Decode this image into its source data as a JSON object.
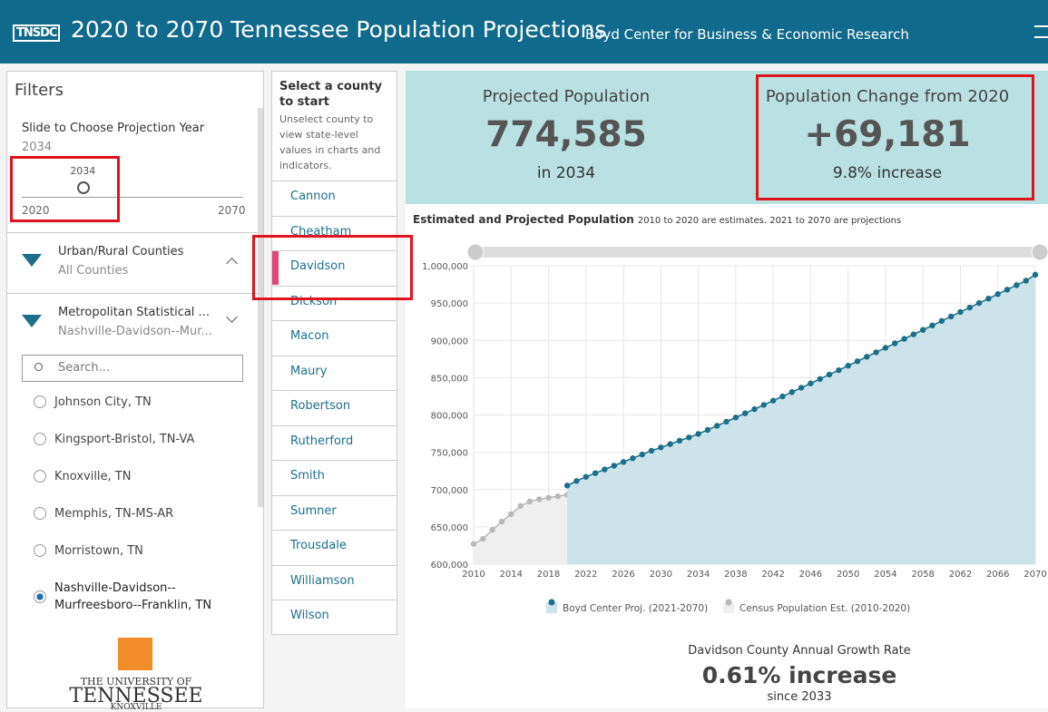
{
  "header": {
    "logo": "TNSDC",
    "title": "2020 to 2070 Tennessee Population Projections",
    "subtitle": "Boyd Center for Business & Economic Research"
  },
  "filters": {
    "title": "Filters",
    "slider": {
      "label": "Slide to Choose Projection Year",
      "value": 2034,
      "min": 2020,
      "max": 2070
    },
    "groups": [
      {
        "title": "Urban/Rural Counties",
        "value": "All Counties"
      },
      {
        "title": "Metropolitan Statistical ...",
        "value": "Nashville-Davidson--Mur..."
      }
    ],
    "search": "Search...",
    "options": [
      {
        "name": "Johnson City, TN"
      },
      {
        "name": "Kingsport-Bristol, TN-VA"
      },
      {
        "name": "Knoxville, TN"
      },
      {
        "name": "Memphis, TN-MS-AR"
      },
      {
        "name": "Morristown, TN"
      },
      {
        "name": "Nashville-Davidson--Murfreesboro--Franklin, TN",
        "selected": true
      }
    ],
    "logo": {
      "line1": "THE UNIVERSITY OF",
      "line2": "TENNESSEE",
      "line3": "KNOXVILLE"
    }
  },
  "counties": {
    "title": "Select a county to start",
    "note": "Unselect county to view state-level values in charts and indicators.",
    "items": [
      {
        "name": "Cannon"
      },
      {
        "name": "Cheatham"
      },
      {
        "name": "Davidson",
        "selected": true
      },
      {
        "name": "Dickson"
      },
      {
        "name": "Macon"
      },
      {
        "name": "Maury"
      },
      {
        "name": "Robertson"
      },
      {
        "name": "Rutherford"
      },
      {
        "name": "Smith"
      },
      {
        "name": "Sumner"
      },
      {
        "name": "Trousdale"
      },
      {
        "name": "Williamson"
      },
      {
        "name": "Wilson"
      }
    ]
  },
  "indicators": [
    {
      "label": "Projected Population",
      "value": "774,585",
      "note": "in 2034"
    },
    {
      "label": "Population Change from 2020",
      "value": "+69,181",
      "note": "9.8% increase"
    }
  ],
  "chart_data": {
    "type": "area",
    "title": "Estimated and Projected Population",
    "subtitle": "2010 to 2020 are estimates. 2021 to 2070 are projections",
    "xlim": [
      2010,
      2070
    ],
    "xticks": [
      2010,
      2014,
      2018,
      2022,
      2026,
      2030,
      2034,
      2038,
      2042,
      2046,
      2050,
      2054,
      2058,
      2062,
      2066,
      2070
    ],
    "ylim": [
      600000,
      1000000
    ],
    "yticks": [
      {
        "value": 600000,
        "label": "600,000"
      },
      {
        "value": 650000,
        "label": "650,000"
      },
      {
        "value": 700000,
        "label": "700,000"
      },
      {
        "value": 750000,
        "label": "750,000"
      },
      {
        "value": 800000,
        "label": "800,000"
      },
      {
        "value": 850000,
        "label": "850,000"
      },
      {
        "value": 900000,
        "label": "900,000"
      },
      {
        "value": 950000,
        "label": "950,000"
      },
      {
        "value": 1000000,
        "label": "1,000,000"
      }
    ],
    "grid": true,
    "series": [
      {
        "name": "Boyd Center Proj. (2021-2070)",
        "color": "#1b6f8a",
        "fill": "#cde3ea",
        "x": [
          2020,
          2021,
          2022,
          2023,
          2024,
          2025,
          2026,
          2027,
          2028,
          2029,
          2030,
          2031,
          2032,
          2033,
          2034,
          2035,
          2036,
          2037,
          2038,
          2039,
          2040,
          2041,
          2042,
          2043,
          2044,
          2045,
          2046,
          2047,
          2048,
          2049,
          2050,
          2051,
          2052,
          2053,
          2054,
          2055,
          2056,
          2057,
          2058,
          2059,
          2060,
          2061,
          2062,
          2063,
          2064,
          2065,
          2066,
          2067,
          2068,
          2069,
          2070
        ],
        "values": [
          705404,
          711500,
          717000,
          722000,
          727000,
          732000,
          737000,
          742000,
          747000,
          752000,
          756500,
          761000,
          765500,
          769890,
          774585,
          780000,
          785500,
          791000,
          796600,
          802200,
          807800,
          813500,
          819200,
          824900,
          830700,
          836500,
          842300,
          848200,
          854100,
          860000,
          866000,
          872000,
          878000,
          884000,
          890000,
          896000,
          902000,
          908000,
          914000,
          920000,
          926000,
          932000,
          938000,
          944000,
          950000,
          956000,
          962000,
          968000,
          974000,
          980000,
          988000
        ]
      },
      {
        "name": "Census Population Est. (2010-2020)",
        "color": "#b8b8b8",
        "fill": "#efefef",
        "x": [
          2010,
          2011,
          2012,
          2013,
          2014,
          2015,
          2016,
          2017,
          2018,
          2019,
          2020
        ],
        "values": [
          627000,
          634000,
          646000,
          657000,
          667000,
          678000,
          684000,
          687000,
          689000,
          691000,
          693000
        ]
      }
    ]
  },
  "growth": {
    "label": "Davidson County Annual Growth Rate",
    "value": "0.61% increase",
    "note": "since 2033"
  }
}
